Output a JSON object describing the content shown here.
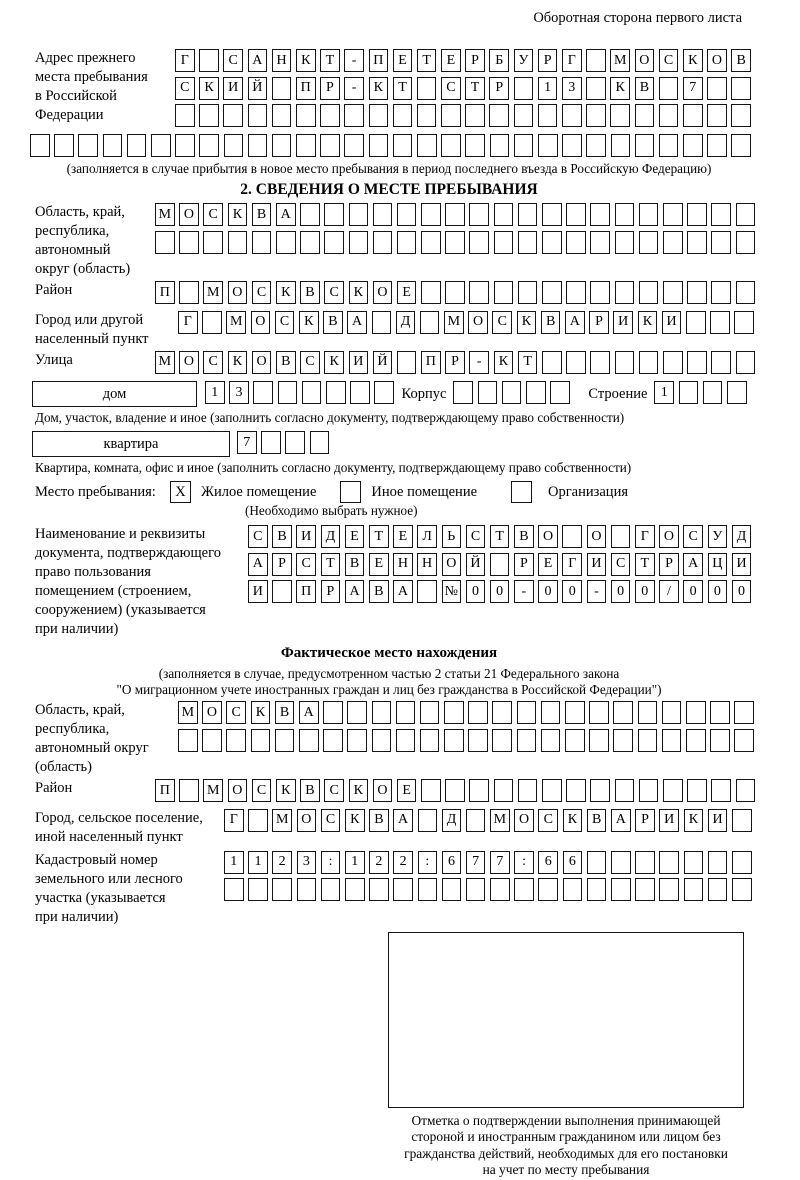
{
  "header": {
    "side_note": "Оборотная сторона первого листа"
  },
  "prev_address": {
    "label": "Адрес прежнего\nместа пребывания\nв Российской\nФедерации",
    "row1": {
      "chars": "Г САНКТ-ПЕТЕРБУРГ МОСКОВ",
      "count": 24
    },
    "row2": {
      "chars": "СКИЙ ПР-КТ СТР 13 КВ 7",
      "count": 24
    },
    "row3": {
      "chars": "",
      "count": 24
    },
    "row4": {
      "chars": "",
      "count": 30
    },
    "note": "(заполняется в случае прибытия в новое место пребывания в период последнего въезда в Российскую Федерацию)"
  },
  "section2": {
    "title": "2. СВЕДЕНИЯ О МЕСТЕ ПРЕБЫВАНИЯ",
    "region": {
      "label": "Область, край,\nреспублика,\nавтономный\nокруг (область)",
      "row1": {
        "chars": "МОСКВА",
        "count": 25
      },
      "row2": {
        "chars": "",
        "count": 25
      }
    },
    "district": {
      "label": "Район",
      "row": {
        "chars": "П МОСКВСКОЕ",
        "count": 25
      }
    },
    "city": {
      "label": "Город или другой\nнаселенный пункт",
      "row": {
        "chars": "Г МОСКВА Д МОСКВАРИКИ",
        "count": 24
      }
    },
    "street": {
      "label": "Улица",
      "row": {
        "chars": "МОСКОВСКИЙ ПР-КТ",
        "count": 25
      }
    },
    "house": {
      "box_label": "дом",
      "row": {
        "chars": "13",
        "count": 8
      },
      "korpus_label": "Корпус",
      "korpus_row": {
        "chars": "",
        "count": 5
      },
      "stroenie_label": "Строение",
      "stroenie_row": {
        "chars": "1",
        "count": 4
      },
      "note": "Дом, участок, владение и иное (заполнить согласно документу, подтверждающему право собственности)"
    },
    "apartment": {
      "box_label": "квартира",
      "row": {
        "chars": "7",
        "count": 4
      },
      "note": "Квартира, комната, офис и иное (заполнить согласно документу, подтверждающему право собственности)"
    },
    "stay_type": {
      "label": "Место пребывания:",
      "options": [
        {
          "label": "Жилое помещение",
          "checked": "X"
        },
        {
          "label": "Иное помещение",
          "checked": ""
        },
        {
          "label": "Организация",
          "checked": ""
        }
      ],
      "note": "(Необходимо выбрать нужное)"
    },
    "document": {
      "label": "Наименование и реквизиты\nдокумента, подтверждающего\nправо пользования\nпомещением (строением,\nсооружением) (указывается\nпри наличии)",
      "row1": {
        "chars": "СВИДЕТЕЛЬСТВО О ГОСУД",
        "count": 21
      },
      "row2": {
        "chars": "АРСТВЕННОЙ РЕГИСТРАЦИ",
        "count": 21
      },
      "row3": {
        "chars": "И ПРАВА №00-00-00/000",
        "count": 21
      }
    }
  },
  "actual_location": {
    "title": "Фактическое место нахождения",
    "note_line1": "(заполняется в случае, предусмотренном частью 2 статьи 21 Федерального закона",
    "note_line2": "\"О миграционном учете иностранных граждан и лиц без гражданства в Российской Федерации\")",
    "region": {
      "label": "Область, край,\nреспублика,\nавтономный округ\n(область)",
      "row1": {
        "chars": "МОСКВА",
        "count": 24
      },
      "row2": {
        "chars": "",
        "count": 24
      }
    },
    "district": {
      "label": "Район",
      "row": {
        "chars": "П МОСКВСКОЕ",
        "count": 25
      }
    },
    "city": {
      "label": "Город, сельское поселение,\nиной населенный пункт",
      "row": {
        "chars": "Г МОСКВА Д МОСКВАРИКИ",
        "count": 22
      }
    },
    "cadastre": {
      "label": "Кадастровый номер\nземельного или лесного\nучастка (указывается\nпри наличии)",
      "row1": {
        "chars": "1123:122:677:66",
        "count": 22
      },
      "row2": {
        "chars": "",
        "count": 22
      }
    }
  },
  "confirmation": {
    "caption_lines": [
      "Отметка о подтверждении выполнения принимающей",
      "стороной и иностранным гражданином или лицом без",
      "гражданства действий, необходимых для его постановки",
      "на учет по месту пребывания"
    ]
  }
}
